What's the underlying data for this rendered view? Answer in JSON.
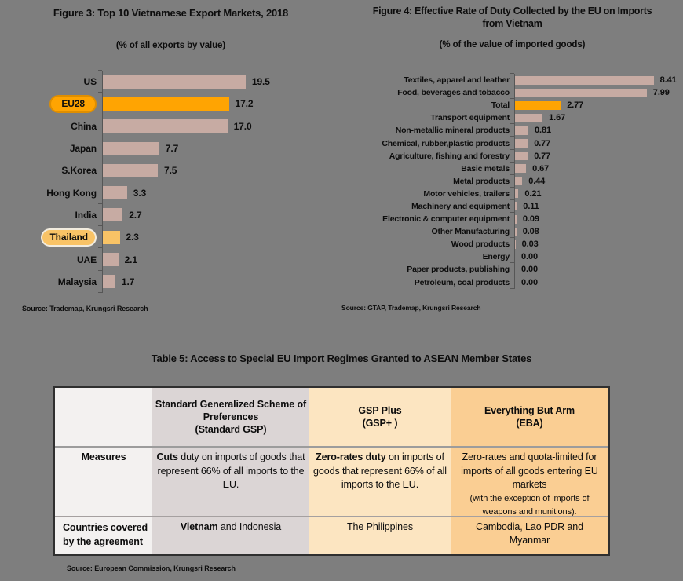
{
  "colors": {
    "background": "#7e7e7e",
    "bar_pink": "#c7aba3",
    "bar_orange": "#ffa402",
    "bar_soft_orange": "#f9c366",
    "axis": "#565656",
    "table_col_white": "#f3f1f0",
    "table_col_gray": "#dbd5d5",
    "table_col_peach_light": "#fce5c1",
    "table_col_peach": "#face93"
  },
  "chart_data": [
    {
      "type": "bar",
      "orientation": "horizontal",
      "title": "Figure 3: Top 10 Vietnamese Export Markets, 2018",
      "subtitle": "(% of all exports by value)",
      "source": "Source: Trademap, Krungsri Research",
      "categories": [
        "US",
        "EU28",
        "China",
        "Japan",
        "S.Korea",
        "Hong Kong",
        "India",
        "Thailand",
        "UAE",
        "Malaysia"
      ],
      "values": [
        19.5,
        17.2,
        17.0,
        7.7,
        7.5,
        3.3,
        2.7,
        2.3,
        2.1,
        1.7
      ],
      "value_labels": [
        "19.5",
        "17.2",
        "17.0",
        "7.7",
        "7.5",
        "3.3",
        "2.7",
        "2.3",
        "2.1",
        "1.7"
      ],
      "highlights": {
        "EU28": "strong",
        "Thailand": "soft"
      },
      "pills": true,
      "xlim": [
        0,
        21
      ],
      "grid": false,
      "legend": "none"
    },
    {
      "type": "bar",
      "orientation": "horizontal",
      "title": "Figure 4: Effective Rate of Duty Collected by the EU on Imports from Vietnam",
      "title_lines": [
        "Figure 4: Effective Rate of Duty Collected by the EU on Imports",
        "from Vietnam"
      ],
      "subtitle": "(% of the value of imported goods)",
      "source": "Source: GTAP, Trademap, Krungsri Research",
      "categories": [
        "Textiles, apparel and leather",
        "Food, beverages and tobacco",
        "Total",
        "Transport equipment",
        "Non-metallic mineral products",
        "Chemical, rubber,plastic products",
        "Agriculture, fishing and forestry",
        "Basic metals",
        "Metal products",
        "Motor vehicles, trailers",
        "Machinery and equipment",
        "Electronic & computer equipment",
        "Other Manufacturing",
        "Wood products",
        "Energy",
        "Paper products, publishing",
        "Petroleum, coal products"
      ],
      "values": [
        8.41,
        7.99,
        2.77,
        1.67,
        0.81,
        0.77,
        0.77,
        0.67,
        0.44,
        0.21,
        0.11,
        0.09,
        0.08,
        0.03,
        0.0,
        0.0,
        0.0
      ],
      "value_labels": [
        "8.41",
        "7.99",
        "2.77",
        "1.67",
        "0.81",
        "0.77",
        "0.77",
        "0.67",
        "0.44",
        "0.21",
        "0.11",
        "0.09",
        "0.08",
        "0.03",
        "0.00",
        "0.00",
        "0.00"
      ],
      "highlights": {
        "Total": "strong"
      },
      "pills": false,
      "xlim": [
        0,
        9
      ],
      "grid": false,
      "legend": "none"
    },
    {
      "type": "table",
      "title": "Table 5: Access to Special EU Import Regimes Granted to ASEAN Member States",
      "source": "Source: European Commission, Krungsri Research",
      "columns": [
        "",
        "Standard Generalized Scheme of Preferences (Standard GSP)",
        "GSP Plus (GSP+ )",
        "Everything But Arm (EBA)"
      ],
      "rows": [
        [
          "Measures",
          "Cuts duty on imports of goods that represent 66% of all imports to the EU.",
          "Zero-rates duty on imports of goods that represent 66% of all imports to the EU.",
          "Zero-rates and quota-limited for imports of all goods entering EU markets (with the exception of imports of weapons and munitions)."
        ],
        [
          "Countries covered by the agreement",
          "Vietnam and Indonesia",
          "The Philippines",
          "Cambodia, Lao PDR and Myanmar"
        ]
      ]
    }
  ],
  "table5": {
    "title": "Table 5: Access to Special EU Import Regimes Granted to ASEAN Member States",
    "source": "Source: European Commission, Krungsri Research",
    "header": [
      [
        ""
      ],
      [
        "Standard Generalized Scheme of",
        "Preferences",
        "(Standard GSP)"
      ],
      [
        "GSP Plus",
        "(GSP+ )"
      ],
      [
        "Everything But Arm",
        "(EBA)"
      ]
    ],
    "rows": [
      {
        "header": "Measures",
        "header_align": "center",
        "cells": [
          [
            {
              "t": "Cuts",
              "b": 1
            },
            {
              "t": " duty on imports of goods that represent 66% of all imports to the EU."
            }
          ],
          [
            {
              "t": "Zero-rates duty",
              "b": 1
            },
            {
              "t": " on imports of goods that represent 66% of all imports to the EU."
            }
          ],
          [
            {
              "t": "Zero-rates and quota-limited for imports of all goods entering EU markets"
            },
            {
              "t": "(with the exception of imports of weapons and munitions).",
              "small": 1
            }
          ]
        ]
      },
      {
        "header": "Countries covered by the agreement",
        "header_align": "left",
        "cells": [
          [
            {
              "t": "Vietnam",
              "b": 1
            },
            {
              "t": " and Indonesia"
            }
          ],
          [
            {
              "t": "The Philippines"
            }
          ],
          [
            {
              "t": "Cambodia, Lao PDR and Myanmar"
            }
          ]
        ]
      }
    ]
  }
}
